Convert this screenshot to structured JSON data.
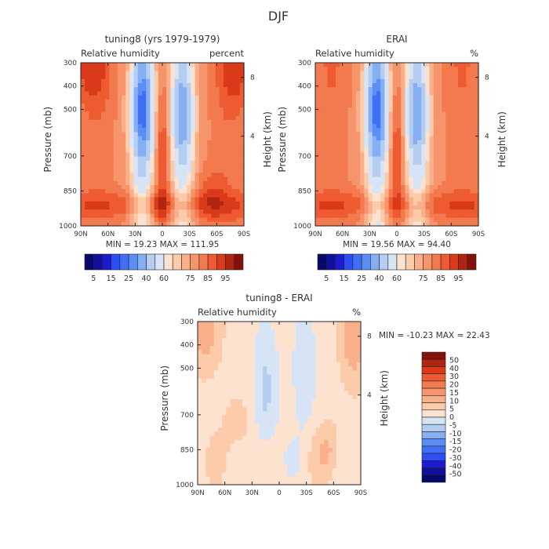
{
  "figure_title": "DJF",
  "colors": {
    "neg": [
      "#08086b",
      "#10109c",
      "#1c1ccf",
      "#2b4ff5",
      "#3f6ff5",
      "#5a8ef5",
      "#86aef2",
      "#b4cdf0",
      "#d7e4f6"
    ],
    "pos": [
      "#fde3cf",
      "#fbcbaa",
      "#f9b08a",
      "#f6956b",
      "#f27a4e",
      "#ee5a32",
      "#d83a1a",
      "#b02412",
      "#84120a"
    ]
  },
  "chart_data": [
    {
      "type": "heatmap",
      "panel": "model",
      "title": "tuning8 (yrs 1979-1979)",
      "left_label": "Relative humidity",
      "right_label": "percent",
      "ylabel": "Pressure (mb)",
      "ylabel_right": "Height (km)",
      "xticks": [
        "90N",
        "60N",
        "30N",
        "0",
        "30S",
        "60S",
        "90S"
      ],
      "yticks": [
        "300",
        "400",
        "500",
        "700",
        "850",
        "1000"
      ],
      "right_ticks": [
        "8",
        "4"
      ],
      "xlim": [
        90,
        -90
      ],
      "ylim": [
        1000,
        300
      ],
      "stats": "MIN =  19.23   MAX = 111.95",
      "colorbar_labels": [
        "5",
        "15",
        "25",
        "40",
        "60",
        "75",
        "85",
        "95"
      ],
      "colorbar_levels": [
        5,
        10,
        15,
        20,
        25,
        30,
        40,
        50,
        60,
        65,
        70,
        75,
        80,
        85,
        90,
        95
      ]
    },
    {
      "type": "heatmap",
      "panel": "reanalysis",
      "title": "ERAI",
      "left_label": "Relative humidity",
      "right_label": "%",
      "ylabel": "Pressure (mb)",
      "ylabel_right": "Height (km)",
      "xticks": [
        "90N",
        "60N",
        "30N",
        "0",
        "30S",
        "60S",
        "90S"
      ],
      "yticks": [
        "300",
        "400",
        "500",
        "700",
        "850",
        "1000"
      ],
      "right_ticks": [
        "8",
        "4"
      ],
      "xlim": [
        90,
        -90
      ],
      "ylim": [
        1000,
        300
      ],
      "stats": "MIN =  19.56   MAX =  94.40",
      "colorbar_labels": [
        "5",
        "15",
        "25",
        "40",
        "60",
        "75",
        "85",
        "95"
      ],
      "colorbar_levels": [
        5,
        10,
        15,
        20,
        25,
        30,
        40,
        50,
        60,
        65,
        70,
        75,
        80,
        85,
        90,
        95
      ]
    },
    {
      "type": "heatmap",
      "panel": "difference",
      "title": "tuning8 - ERAI",
      "left_label": "Relative humidity",
      "right_label": "%",
      "ylabel": "Pressure (mb)",
      "ylabel_right": "Height (km)",
      "xticks": [
        "90N",
        "60N",
        "30N",
        "0",
        "30S",
        "60S",
        "90S"
      ],
      "yticks": [
        "300",
        "400",
        "500",
        "700",
        "850",
        "1000"
      ],
      "right_ticks": [
        "8",
        "4"
      ],
      "xlim": [
        90,
        -90
      ],
      "ylim": [
        1000,
        300
      ],
      "stats": "MIN = -10.23   MAX =  22.43",
      "colorbar_labels": [
        "50",
        "40",
        "30",
        "20",
        "15",
        "10",
        "5",
        "0",
        "-5",
        "-10",
        "-15",
        "-20",
        "-30",
        "-40",
        "-50"
      ],
      "colorbar_levels": [
        50,
        40,
        30,
        20,
        15,
        10,
        5,
        0,
        -5,
        -10,
        -15,
        -20,
        -30,
        -40,
        -50
      ]
    }
  ]
}
